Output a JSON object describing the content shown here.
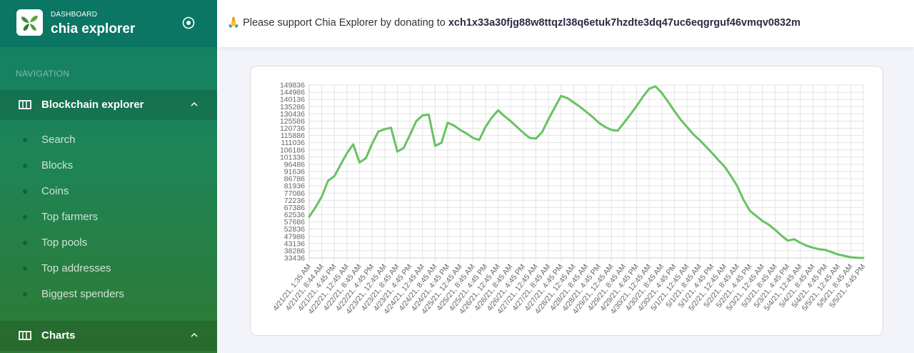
{
  "sidebar": {
    "label": "DASHBOARD",
    "brand": "chia explorer",
    "nav_heading": "NAVIGATION",
    "sections": [
      {
        "title": "Blockchain explorer",
        "items": [
          "Search",
          "Blocks",
          "Coins",
          "Top farmers",
          "Top pools",
          "Top addresses",
          "Biggest spenders"
        ]
      },
      {
        "title": "Charts"
      }
    ]
  },
  "banner": {
    "emoji": "🙏",
    "text": "Please support Chia Explorer by donating to",
    "address": "xch1x33a30fjg88w8ttqzl38q6etuk7hzdte3dq47uc6eqgrguf46vmqv0832m"
  },
  "chart_data": {
    "type": "line",
    "color": "#67c262",
    "grid": true,
    "categories": [
      "4/21/21, 1:35 AM",
      null,
      "4/21/21, 8:44 AM",
      null,
      "4/21/21, 4:45 PM",
      null,
      "4/22/21, 12:45 AM",
      null,
      "4/22/21, 8:45 AM",
      null,
      "4/22/21, 4:45 PM",
      null,
      "4/23/21, 12:45 AM",
      null,
      "4/23/21, 8:45 AM",
      null,
      "4/23/21, 4:45 PM",
      null,
      "4/24/21, 12:45 AM",
      null,
      "4/24/21, 8:45 AM",
      null,
      "4/24/21, 4:45 PM",
      null,
      "4/25/21, 12:45 AM",
      null,
      "4/25/21, 8:45 AM",
      null,
      "4/25/21, 4:45 PM",
      null,
      "4/26/21, 12:45 AM",
      null,
      "4/26/21, 8:45 AM",
      null,
      "4/26/21, 4:45 PM",
      null,
      "4/27/21, 12:45 AM",
      null,
      "4/27/21, 8:45 AM",
      null,
      "4/27/21, 4:45 PM",
      null,
      "4/28/21, 12:45 AM",
      null,
      "4/28/21, 8:45 AM",
      null,
      "4/28/21, 4:45 PM",
      null,
      "4/29/21, 12:45 AM",
      null,
      "4/29/21, 8:45 AM",
      null,
      "4/29/21, 4:45 PM",
      null,
      "4/30/21, 12:45 AM",
      null,
      "4/30/21, 8:45 AM",
      null,
      "4/30/21, 4:45 PM",
      null,
      "5/1/21, 12:45 AM",
      null,
      "5/1/21, 8:45 AM",
      null,
      "5/1/21, 4:45 PM",
      null,
      "5/2/21, 12:45 AM",
      null,
      "5/2/21, 8:45 AM",
      null,
      "5/2/21, 4:45 PM",
      null,
      "5/3/21, 12:45 AM",
      null,
      "5/3/21, 8:45 AM",
      null,
      "5/3/21, 4:45 PM",
      null,
      "5/4/21, 12:45 AM",
      null,
      "5/4/21, 8:45 AM",
      null,
      "5/4/21, 4:45 PM",
      null,
      "5/5/21, 12:45 AM",
      null,
      "5/5/21, 8:45 AM",
      null,
      "5/5/21, 4:45 PM"
    ],
    "values": [
      61200,
      67500,
      74800,
      85500,
      88500,
      96300,
      104000,
      109900,
      97700,
      100600,
      110400,
      118600,
      120100,
      121100,
      105000,
      107500,
      116200,
      125500,
      129400,
      129900,
      108900,
      110900,
      124500,
      122600,
      119600,
      117200,
      114300,
      112800,
      121600,
      127900,
      132800,
      128900,
      125500,
      121600,
      117700,
      114300,
      113800,
      118200,
      126900,
      134700,
      142500,
      141100,
      138100,
      135200,
      131800,
      128400,
      124500,
      121600,
      119600,
      119100,
      124500,
      129900,
      135700,
      142000,
      147400,
      148900,
      144500,
      138600,
      132300,
      126500,
      121600,
      116700,
      112800,
      108400,
      104000,
      99200,
      94800,
      88500,
      81700,
      72400,
      65100,
      61700,
      58300,
      55800,
      52400,
      48500,
      45100,
      46100,
      43700,
      41700,
      40300,
      39300,
      38800,
      37300,
      35800,
      34900,
      33900,
      33600,
      33436
    ],
    "ylim": [
      33436,
      149836
    ],
    "yticks": [
      33436,
      38286,
      43136,
      47986,
      52836,
      57686,
      62536,
      67386,
      72236,
      77086,
      81936,
      86786,
      91636,
      96486,
      101336,
      106186,
      111036,
      115886,
      120736,
      125586,
      130436,
      135286,
      140136,
      144986,
      149836
    ]
  }
}
